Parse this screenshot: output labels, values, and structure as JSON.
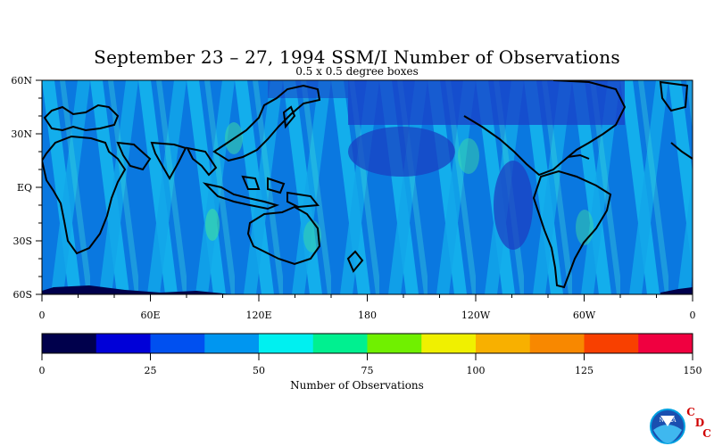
{
  "title": "September 23 – 27, 1994 SSM/I Number of Observations",
  "subtitle": "0.5 x 0.5 degree boxes",
  "map": {
    "lat_labels": [
      "60N",
      "30N",
      "EQ",
      "30S",
      "60S"
    ],
    "lon_labels": [
      "0",
      "60E",
      "120E",
      "180",
      "120W",
      "60W",
      "0"
    ]
  },
  "colorbar": {
    "label": "Number of Observations",
    "ticks": [
      "0",
      "25",
      "50",
      "75",
      "100",
      "125",
      "150"
    ],
    "colors": [
      "#00004c",
      "#0000d8",
      "#0050f0",
      "#0096f0",
      "#00f0f0",
      "#00f090",
      "#70f000",
      "#f0f000",
      "#f8b000",
      "#f88800",
      "#f84000",
      "#f00040"
    ]
  },
  "logo": {
    "letters": [
      "C",
      "D",
      "C"
    ],
    "emblem": "NOAA",
    "letter_color": "#d00000"
  }
}
